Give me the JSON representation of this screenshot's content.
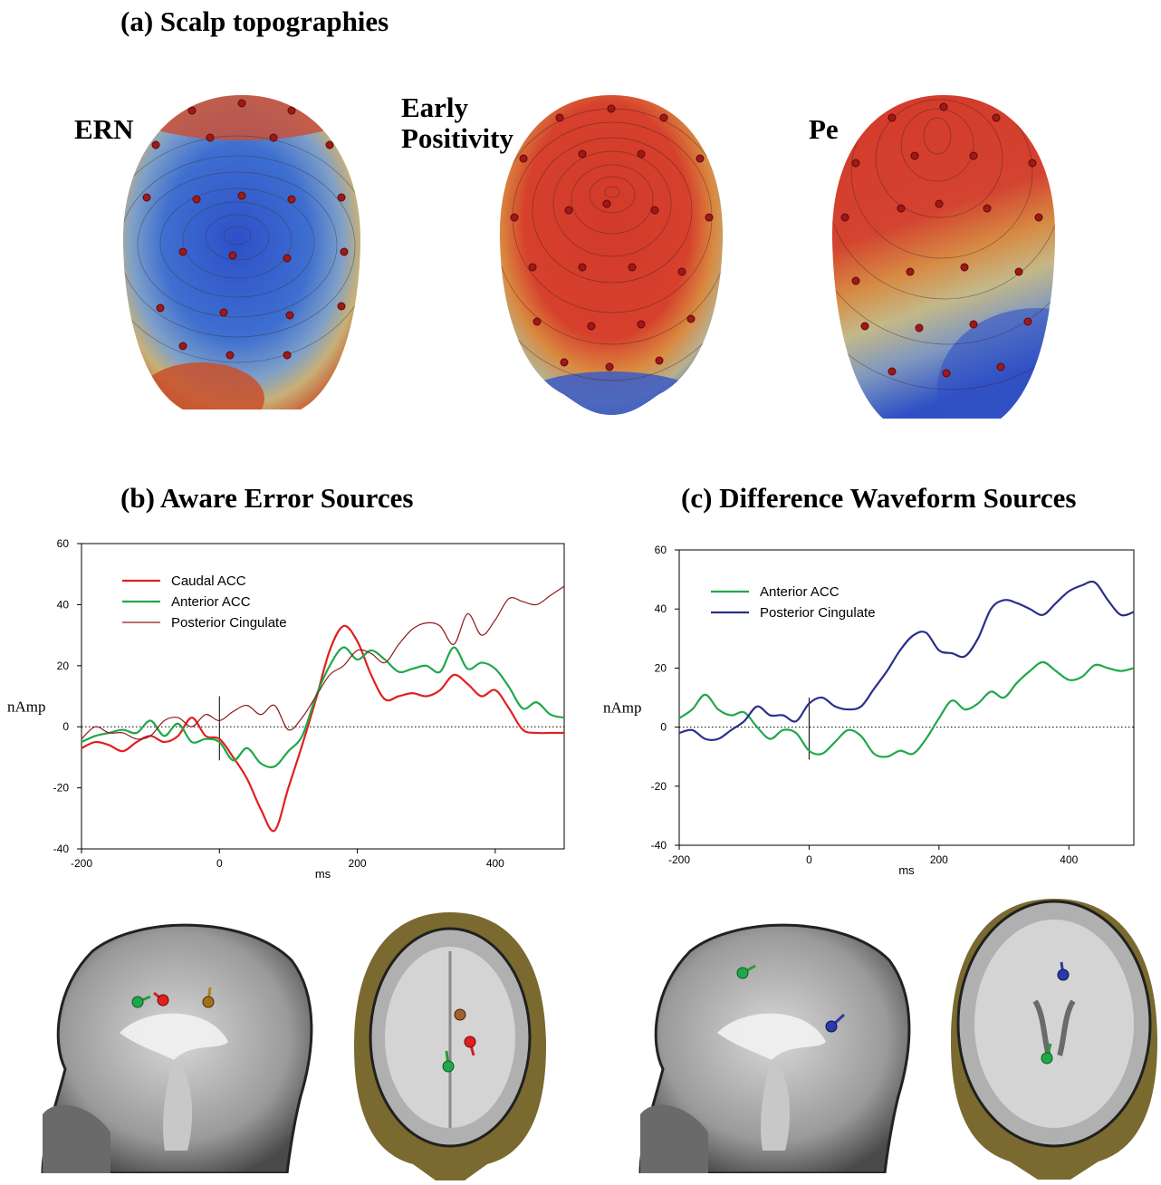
{
  "figure": {
    "panel_a_title": "(a) Scalp topographies",
    "panel_b_title": "(b) Aware Error Sources",
    "panel_c_title": "(c) Difference Waveform Sources",
    "topographies": [
      {
        "label": "ERN",
        "pattern": "negative-central"
      },
      {
        "label_line1": "Early",
        "label_line2": "Positivity",
        "pattern": "positive-central"
      },
      {
        "label": "Pe",
        "pattern": "positive-frontal"
      }
    ]
  },
  "chart_data": [
    {
      "type": "line",
      "title": "(b) Aware Error Sources",
      "xlabel": "ms",
      "ylabel": "nAmp",
      "xlim": [
        -200,
        500
      ],
      "ylim": [
        -40,
        60
      ],
      "xticks": [
        -200,
        0,
        200,
        400
      ],
      "yticks": [
        -40,
        -20,
        0,
        20,
        40,
        60
      ],
      "legend_position": "top-left",
      "series": [
        {
          "name": "Caudal ACC",
          "color": "#e02020",
          "x": [
            -200,
            -180,
            -160,
            -140,
            -120,
            -100,
            -80,
            -60,
            -40,
            -20,
            0,
            20,
            40,
            60,
            80,
            100,
            120,
            140,
            160,
            180,
            200,
            220,
            240,
            260,
            280,
            300,
            320,
            340,
            360,
            380,
            400,
            420,
            440,
            460,
            480,
            500
          ],
          "y": [
            -7,
            -5,
            -6,
            -8,
            -5,
            -3,
            -5,
            -3,
            3,
            -3,
            -4,
            -10,
            -17,
            -27,
            -34,
            -20,
            -6,
            9,
            25,
            33,
            28,
            17,
            9,
            10,
            11,
            10,
            12,
            17,
            14,
            10,
            12,
            6,
            -1,
            -2,
            -2,
            -2
          ]
        },
        {
          "name": "Anterior ACC",
          "color": "#1fa84a",
          "x": [
            -200,
            -180,
            -160,
            -140,
            -120,
            -100,
            -80,
            -60,
            -40,
            -20,
            0,
            20,
            40,
            60,
            80,
            100,
            120,
            140,
            160,
            180,
            200,
            220,
            240,
            260,
            280,
            300,
            320,
            340,
            360,
            380,
            400,
            420,
            440,
            460,
            480,
            500
          ],
          "y": [
            -5,
            -3,
            -2,
            -1,
            -2,
            2,
            -3,
            1,
            -5,
            -4,
            -5,
            -11,
            -7,
            -12,
            -13,
            -8,
            -3,
            10,
            20,
            26,
            22,
            25,
            22,
            18,
            19,
            20,
            18,
            26,
            19,
            21,
            19,
            13,
            6,
            8,
            4,
            3
          ]
        },
        {
          "name": "Posterior Cingulate",
          "color": "#8b1a1a",
          "x": [
            -200,
            -180,
            -160,
            -140,
            -120,
            -100,
            -80,
            -60,
            -40,
            -20,
            0,
            20,
            40,
            60,
            80,
            100,
            120,
            140,
            160,
            180,
            200,
            220,
            240,
            260,
            280,
            300,
            320,
            340,
            360,
            380,
            400,
            420,
            440,
            460,
            480,
            500
          ],
          "y": [
            -4,
            0,
            -2,
            -2,
            -4,
            -3,
            2,
            3,
            0,
            4,
            2,
            5,
            7,
            4,
            7,
            -1,
            3,
            10,
            17,
            20,
            25,
            24,
            21,
            27,
            32,
            34,
            33,
            27,
            37,
            30,
            35,
            42,
            41,
            40,
            43,
            46
          ]
        }
      ]
    },
    {
      "type": "line",
      "title": "(c) Difference Waveform Sources",
      "xlabel": "ms",
      "ylabel": "nAmp",
      "xlim": [
        -200,
        500
      ],
      "ylim": [
        -40,
        60
      ],
      "xticks": [
        -200,
        0,
        200,
        400
      ],
      "yticks": [
        -40,
        -20,
        0,
        20,
        40,
        60
      ],
      "legend_position": "top-left",
      "series": [
        {
          "name": "Anterior ACC",
          "color": "#1fa84a",
          "x": [
            -200,
            -180,
            -160,
            -140,
            -120,
            -100,
            -80,
            -60,
            -40,
            -20,
            0,
            20,
            40,
            60,
            80,
            100,
            120,
            140,
            160,
            180,
            200,
            220,
            240,
            260,
            280,
            300,
            320,
            340,
            360,
            380,
            400,
            420,
            440,
            460,
            480,
            500
          ],
          "y": [
            3,
            6,
            11,
            6,
            4,
            5,
            0,
            -4,
            -1,
            -2,
            -8,
            -9,
            -5,
            -1,
            -3,
            -9,
            -10,
            -8,
            -9,
            -4,
            3,
            9,
            6,
            8,
            12,
            10,
            15,
            19,
            22,
            19,
            16,
            17,
            21,
            20,
            19,
            20
          ]
        },
        {
          "name": "Posterior Cingulate",
          "color": "#2a2f8a",
          "x": [
            -200,
            -180,
            -160,
            -140,
            -120,
            -100,
            -80,
            -60,
            -40,
            -20,
            0,
            20,
            40,
            60,
            80,
            100,
            120,
            140,
            160,
            180,
            200,
            220,
            240,
            260,
            280,
            300,
            320,
            340,
            360,
            380,
            400,
            420,
            440,
            460,
            480,
            500
          ],
          "y": [
            -2,
            -1,
            -4,
            -4,
            -1,
            2,
            7,
            4,
            4,
            2,
            8,
            10,
            7,
            6,
            7,
            13,
            19,
            26,
            31,
            32,
            26,
            25,
            24,
            30,
            40,
            43,
            42,
            40,
            38,
            42,
            46,
            48,
            49,
            43,
            38,
            39
          ]
        }
      ]
    }
  ]
}
